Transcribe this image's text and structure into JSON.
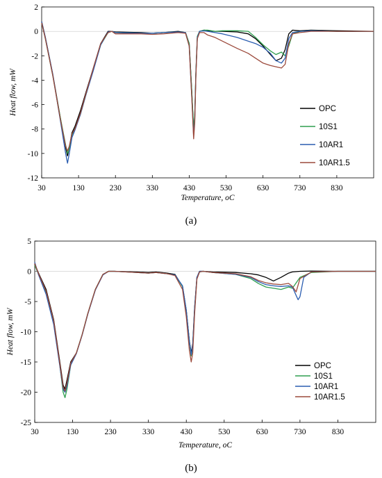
{
  "chart_data": [
    {
      "type": "line",
      "panel_label": "(a)",
      "xlabel": "Temperature, oC",
      "ylabel": "Heat flow, mW",
      "xlim": [
        30,
        930
      ],
      "ylim": [
        -12,
        2
      ],
      "xticks": [
        30,
        130,
        230,
        330,
        430,
        530,
        630,
        730,
        830
      ],
      "yticks": [
        2,
        0,
        -2,
        -4,
        -6,
        -8,
        -10,
        -12
      ],
      "grid": false,
      "legend_position": "right",
      "series": [
        {
          "name": "OPC",
          "color": "#000000",
          "x": [
            30,
            40,
            60,
            80,
            95,
            100,
            105,
            112,
            120,
            135,
            150,
            170,
            190,
            210,
            220,
            230,
            300,
            330,
            360,
            400,
            420,
            430,
            437,
            442,
            445,
            448,
            452,
            458,
            470,
            480,
            500,
            520,
            560,
            590,
            610,
            630,
            650,
            665,
            680,
            690,
            700,
            710,
            730,
            760,
            830,
            930
          ],
          "y": [
            0.8,
            -0.5,
            -3.5,
            -7.0,
            -9.5,
            -10.2,
            -9.5,
            -8.3,
            -7.8,
            -6.5,
            -5.0,
            -3.0,
            -1.0,
            0.0,
            0.0,
            -0.05,
            -0.1,
            -0.15,
            -0.1,
            0.0,
            -0.1,
            -1.0,
            -5.0,
            -8.2,
            -7.0,
            -3.5,
            -0.5,
            0.0,
            0.1,
            0.05,
            0.0,
            0.0,
            -0.05,
            -0.2,
            -0.6,
            -1.2,
            -1.9,
            -2.4,
            -2.2,
            -1.5,
            -0.2,
            0.1,
            0.05,
            0.1,
            0.05,
            0.0
          ]
        },
        {
          "name": "10S1",
          "color": "#2e9e4f",
          "x": [
            30,
            40,
            60,
            80,
            95,
            100,
            105,
            112,
            120,
            135,
            150,
            170,
            190,
            210,
            220,
            230,
            300,
            330,
            360,
            400,
            420,
            430,
            437,
            442,
            445,
            448,
            452,
            458,
            470,
            480,
            500,
            520,
            560,
            590,
            610,
            630,
            650,
            665,
            680,
            690,
            700,
            710,
            730,
            760,
            830,
            930
          ],
          "y": [
            0.7,
            -0.6,
            -3.6,
            -7.0,
            -9.3,
            -10.0,
            -9.6,
            -8.5,
            -8.0,
            -6.8,
            -5.2,
            -3.1,
            -1.1,
            -0.1,
            0.0,
            -0.1,
            -0.15,
            -0.15,
            -0.1,
            -0.05,
            -0.1,
            -1.0,
            -5.0,
            -8.0,
            -6.8,
            -3.4,
            -0.4,
            0.0,
            0.1,
            0.1,
            0.0,
            0.05,
            0.05,
            0.0,
            -0.5,
            -1.1,
            -1.6,
            -1.9,
            -1.7,
            -2.0,
            -1.2,
            -0.2,
            0.0,
            0.05,
            0.0,
            0.0
          ]
        },
        {
          "name": "10AR1",
          "color": "#2a5db0",
          "x": [
            30,
            40,
            60,
            80,
            95,
            100,
            105,
            112,
            120,
            135,
            150,
            170,
            190,
            210,
            220,
            230,
            300,
            330,
            360,
            400,
            420,
            430,
            437,
            442,
            445,
            448,
            452,
            458,
            470,
            480,
            500,
            520,
            560,
            590,
            610,
            630,
            650,
            665,
            680,
            690,
            700,
            710,
            730,
            760,
            830,
            930
          ],
          "y": [
            0.8,
            -0.5,
            -3.5,
            -7.2,
            -10.0,
            -10.8,
            -10.0,
            -8.7,
            -8.1,
            -6.8,
            -5.2,
            -3.2,
            -1.1,
            -0.05,
            0.0,
            -0.1,
            -0.15,
            -0.15,
            -0.1,
            -0.05,
            -0.1,
            -1.2,
            -5.5,
            -8.6,
            -7.2,
            -3.6,
            -0.5,
            0.0,
            0.05,
            0.0,
            -0.1,
            -0.2,
            -0.5,
            -0.8,
            -1.0,
            -1.3,
            -1.8,
            -2.4,
            -2.6,
            -2.2,
            -0.6,
            -0.1,
            0.0,
            0.05,
            0.0,
            0.0
          ]
        },
        {
          "name": "10AR1.5",
          "color": "#9c4a3c",
          "x": [
            30,
            40,
            60,
            80,
            95,
            100,
            105,
            112,
            120,
            135,
            150,
            170,
            190,
            210,
            220,
            230,
            300,
            330,
            360,
            400,
            420,
            430,
            437,
            442,
            445,
            448,
            452,
            458,
            470,
            480,
            500,
            520,
            560,
            590,
            610,
            630,
            650,
            665,
            680,
            690,
            700,
            710,
            730,
            760,
            830,
            930
          ],
          "y": [
            0.7,
            -0.6,
            -3.6,
            -7.1,
            -9.4,
            -9.8,
            -9.4,
            -8.4,
            -8.0,
            -6.7,
            -5.1,
            -3.0,
            -1.0,
            -0.1,
            0.0,
            -0.2,
            -0.2,
            -0.25,
            -0.2,
            -0.1,
            -0.15,
            -1.2,
            -5.5,
            -8.8,
            -7.5,
            -3.8,
            -0.6,
            -0.1,
            -0.1,
            -0.3,
            -0.5,
            -0.8,
            -1.4,
            -1.8,
            -2.2,
            -2.6,
            -2.8,
            -2.9,
            -3.0,
            -2.7,
            -1.0,
            -0.2,
            -0.1,
            0.0,
            0.0,
            0.0
          ]
        }
      ]
    },
    {
      "type": "line",
      "panel_label": "(b)",
      "xlabel": "Temperature, oC",
      "ylabel": "Heat flow, mW",
      "xlim": [
        30,
        930
      ],
      "ylim": [
        -25,
        5
      ],
      "xticks": [
        30,
        130,
        230,
        330,
        430,
        530,
        630,
        730,
        830
      ],
      "yticks": [
        5,
        0,
        -5,
        -10,
        -15,
        -20,
        -25
      ],
      "grid": false,
      "legend_position": "right",
      "series": [
        {
          "name": "OPC",
          "color": "#000000",
          "x": [
            30,
            40,
            60,
            80,
            95,
            105,
            110,
            115,
            125,
            140,
            155,
            170,
            190,
            210,
            225,
            240,
            300,
            330,
            350,
            380,
            400,
            420,
            430,
            438,
            443,
            447,
            452,
            458,
            465,
            475,
            500,
            560,
            600,
            620,
            640,
            660,
            680,
            700,
            710,
            730,
            760,
            830,
            930
          ],
          "y": [
            1.2,
            -0.3,
            -3.0,
            -8.0,
            -14.5,
            -18.8,
            -19.5,
            -18.0,
            -15.0,
            -13.5,
            -10.5,
            -7.0,
            -3.0,
            -0.5,
            0.0,
            0.0,
            -0.1,
            -0.2,
            -0.1,
            -0.3,
            -0.5,
            -2.5,
            -6.5,
            -11.5,
            -13.5,
            -12.0,
            -6.0,
            -1.0,
            0.0,
            0.0,
            -0.1,
            -0.2,
            -0.4,
            -0.6,
            -1.0,
            -1.6,
            -1.0,
            -0.3,
            -0.1,
            0.0,
            0.05,
            0.0,
            0.0
          ]
        },
        {
          "name": "10S1",
          "color": "#2e9e4f",
          "x": [
            30,
            40,
            60,
            80,
            95,
            105,
            110,
            115,
            125,
            140,
            155,
            170,
            190,
            210,
            225,
            240,
            300,
            330,
            350,
            380,
            400,
            420,
            430,
            438,
            443,
            447,
            452,
            458,
            465,
            475,
            500,
            560,
            600,
            620,
            640,
            660,
            680,
            700,
            710,
            730,
            760,
            830,
            930
          ],
          "y": [
            1.0,
            -0.5,
            -3.5,
            -8.5,
            -15.0,
            -20.0,
            -20.9,
            -19.5,
            -15.5,
            -13.5,
            -10.5,
            -7.0,
            -3.0,
            -0.5,
            0.0,
            0.0,
            -0.2,
            -0.3,
            -0.2,
            -0.4,
            -0.6,
            -2.5,
            -6.5,
            -11.5,
            -14.0,
            -12.5,
            -6.5,
            -1.2,
            -0.1,
            0.0,
            -0.2,
            -0.5,
            -1.2,
            -2.0,
            -2.6,
            -2.8,
            -3.0,
            -2.6,
            -2.8,
            -1.0,
            -0.2,
            0.0,
            0.0
          ]
        },
        {
          "name": "10AR1",
          "color": "#2a5db0",
          "x": [
            30,
            40,
            60,
            80,
            95,
            105,
            110,
            115,
            125,
            140,
            155,
            170,
            190,
            210,
            225,
            240,
            300,
            330,
            350,
            380,
            400,
            420,
            430,
            438,
            443,
            447,
            452,
            458,
            465,
            475,
            500,
            560,
            600,
            620,
            640,
            660,
            680,
            700,
            710,
            720,
            725,
            730,
            740,
            760,
            830,
            930
          ],
          "y": [
            1.5,
            -0.6,
            -3.8,
            -8.8,
            -15.2,
            -19.5,
            -20.0,
            -19.0,
            -15.5,
            -13.6,
            -10.6,
            -7.1,
            -3.1,
            -0.6,
            0.0,
            0.0,
            -0.2,
            -0.3,
            -0.2,
            -0.4,
            -0.6,
            -2.4,
            -6.4,
            -11.5,
            -13.8,
            -12.2,
            -6.2,
            -1.0,
            0.0,
            0.0,
            -0.2,
            -0.5,
            -1.0,
            -1.7,
            -2.2,
            -2.4,
            -2.5,
            -2.4,
            -2.6,
            -4.0,
            -4.7,
            -4.2,
            -1.0,
            -0.1,
            0.0,
            0.0
          ]
        },
        {
          "name": "10AR1.5",
          "color": "#9c4a3c",
          "x": [
            30,
            40,
            60,
            80,
            95,
            105,
            110,
            115,
            125,
            140,
            155,
            170,
            190,
            210,
            225,
            240,
            300,
            330,
            350,
            380,
            400,
            420,
            430,
            438,
            443,
            447,
            452,
            458,
            465,
            475,
            500,
            560,
            600,
            620,
            640,
            660,
            680,
            700,
            710,
            720,
            730,
            760,
            830,
            930
          ],
          "y": [
            1.3,
            -0.4,
            -3.3,
            -8.2,
            -14.8,
            -19.2,
            -19.8,
            -18.5,
            -15.2,
            -13.5,
            -10.5,
            -7.0,
            -3.0,
            -0.5,
            0.0,
            0.0,
            -0.2,
            -0.3,
            -0.2,
            -0.4,
            -0.7,
            -3.0,
            -7.5,
            -13.0,
            -15.0,
            -13.5,
            -7.0,
            -1.3,
            -0.1,
            0.0,
            -0.2,
            -0.4,
            -0.9,
            -1.5,
            -1.9,
            -2.1,
            -2.2,
            -2.0,
            -2.5,
            -3.4,
            -1.2,
            -0.1,
            0.0,
            0.0
          ]
        }
      ]
    }
  ]
}
